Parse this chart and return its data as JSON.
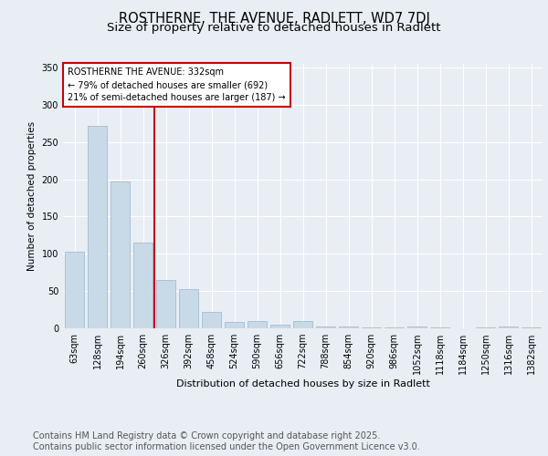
{
  "title": "ROSTHERNE, THE AVENUE, RADLETT, WD7 7DJ",
  "subtitle": "Size of property relative to detached houses in Radlett",
  "xlabel": "Distribution of detached houses by size in Radlett",
  "ylabel": "Number of detached properties",
  "bar_labels": [
    "63sqm",
    "128sqm",
    "194sqm",
    "260sqm",
    "326sqm",
    "392sqm",
    "458sqm",
    "524sqm",
    "590sqm",
    "656sqm",
    "722sqm",
    "788sqm",
    "854sqm",
    "920sqm",
    "986sqm",
    "1052sqm",
    "1118sqm",
    "1184sqm",
    "1250sqm",
    "1316sqm",
    "1382sqm"
  ],
  "bar_values": [
    103,
    272,
    197,
    115,
    65,
    53,
    22,
    8,
    10,
    5,
    10,
    3,
    3,
    1,
    1,
    2,
    1,
    0,
    1,
    3,
    1
  ],
  "bar_color": "#c8d9e8",
  "bar_edge_color": "#9ab5cb",
  "vline_color": "#cc0000",
  "annotation_text": "ROSTHERNE THE AVENUE: 332sqm\n← 79% of detached houses are smaller (692)\n21% of semi-detached houses are larger (187) →",
  "ylim": [
    0,
    355
  ],
  "yticks": [
    0,
    50,
    100,
    150,
    200,
    250,
    300,
    350
  ],
  "bg_color": "#e8eef4",
  "footer_text": "Contains HM Land Registry data © Crown copyright and database right 2025.\nContains public sector information licensed under the Open Government Licence v3.0.",
  "title_fontsize": 10.5,
  "subtitle_fontsize": 9.5,
  "footer_fontsize": 7
}
